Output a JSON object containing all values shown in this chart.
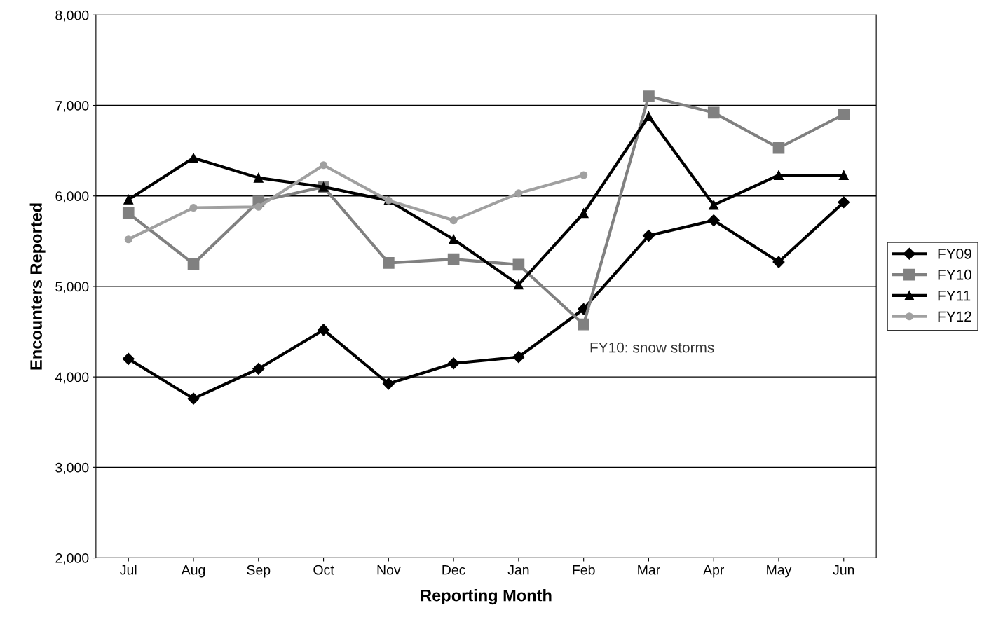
{
  "chart_data": {
    "type": "line",
    "xlabel": "Reporting Month",
    "ylabel": "Encounters Reported",
    "categories": [
      "Jul",
      "Aug",
      "Sep",
      "Oct",
      "Nov",
      "Dec",
      "Jan",
      "Feb",
      "Mar",
      "Apr",
      "May",
      "Jun"
    ],
    "series": [
      {
        "name": "FY09",
        "color": "#000000",
        "marker": "diamond",
        "values": [
          4200,
          3760,
          4090,
          4520,
          3925,
          4150,
          4220,
          4750,
          5560,
          5730,
          5270,
          5930
        ]
      },
      {
        "name": "FY10",
        "color": "#808080",
        "marker": "square",
        "values": [
          5810,
          5250,
          5940,
          6100,
          5260,
          5300,
          5240,
          4580,
          7100,
          6920,
          6530,
          6900
        ]
      },
      {
        "name": "FY11",
        "color": "#000000",
        "marker": "triangle",
        "values": [
          5960,
          6420,
          6200,
          6100,
          5950,
          5520,
          5020,
          5810,
          6880,
          5900,
          6230,
          6230
        ]
      },
      {
        "name": "FY12",
        "color": "#a0a0a0",
        "marker": "circle",
        "values": [
          5520,
          5870,
          5880,
          6340,
          5950,
          5730,
          6030,
          6230,
          null,
          null,
          null,
          null
        ]
      }
    ],
    "ylim": [
      2000,
      8000
    ],
    "yticks": [
      {
        "value": 2000,
        "label": "2,000"
      },
      {
        "value": 3000,
        "label": "3,000"
      },
      {
        "value": 4000,
        "label": "4,000"
      },
      {
        "value": 5000,
        "label": "5,000"
      },
      {
        "value": 6000,
        "label": "6,000"
      },
      {
        "value": 7000,
        "label": "7,000"
      },
      {
        "value": 8000,
        "label": "8,000"
      }
    ],
    "grid": "y",
    "legend": "right",
    "annotations": [
      {
        "text": "FY10: snow storms",
        "x": "Feb",
        "y": 4580
      }
    ]
  }
}
